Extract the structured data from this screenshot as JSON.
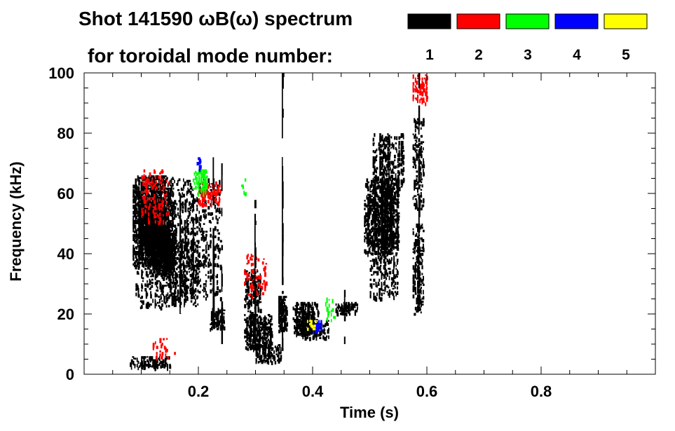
{
  "title_line1": "Shot 141590 ωB(ω) spectrum",
  "title_line2": "for toroidal mode number:",
  "chart_data": {
    "type": "heatmap",
    "title": "Shot 141590 ωB(ω) spectrum for toroidal mode number",
    "xlabel": "Time (s)",
    "ylabel": "Frequency (kHz)",
    "xlim": [
      0.0,
      1.0
    ],
    "ylim": [
      0,
      100
    ],
    "x_ticks": [
      0.2,
      0.4,
      0.6,
      0.8
    ],
    "x_tick_labels": [
      "0.2",
      "0.4",
      "0.6",
      "0.8"
    ],
    "y_ticks": [
      0,
      20,
      40,
      60,
      80,
      100
    ],
    "y_tick_labels": [
      "0",
      "20",
      "40",
      "60",
      "80",
      "100"
    ],
    "legend": [
      {
        "label": "1",
        "color": "#000000"
      },
      {
        "label": "2",
        "color": "#ff0000"
      },
      {
        "label": "3",
        "color": "#00ff00"
      },
      {
        "label": "4",
        "color": "#0000ff"
      },
      {
        "label": "5",
        "color": "#ffff00"
      }
    ],
    "mode_colors": {
      "1": "#000000",
      "2": "#ff0000",
      "3": "#00ff00",
      "4": "#0000ff",
      "5": "#ffff00"
    },
    "regions": [
      {
        "mode": "1",
        "t": [
          0.085,
          0.155
        ],
        "f": [
          36,
          66
        ],
        "density": 0.55
      },
      {
        "mode": "1",
        "t": [
          0.095,
          0.14
        ],
        "f": [
          40,
          58
        ],
        "density": 0.75
      },
      {
        "mode": "1",
        "t": [
          0.11,
          0.16
        ],
        "f": [
          33,
          48
        ],
        "density": 0.6
      },
      {
        "mode": "1",
        "t": [
          0.09,
          0.2
        ],
        "f": [
          22,
          45
        ],
        "density": 0.18
      },
      {
        "mode": "1",
        "t": [
          0.12,
          0.24
        ],
        "f": [
          25,
          65
        ],
        "density": 0.15
      },
      {
        "mode": "1",
        "t": [
          0.22,
          0.245
        ],
        "f": [
          15,
          22
        ],
        "density": 0.5
      },
      {
        "mode": "1",
        "t": [
          0.08,
          0.15
        ],
        "f": [
          2,
          6
        ],
        "density": 0.35
      },
      {
        "mode": "1",
        "t": [
          0.28,
          0.33
        ],
        "f": [
          8,
          20
        ],
        "density": 0.55
      },
      {
        "mode": "1",
        "t": [
          0.3,
          0.345
        ],
        "f": [
          4,
          10
        ],
        "density": 0.45
      },
      {
        "mode": "1",
        "t": [
          0.28,
          0.31
        ],
        "f": [
          20,
          35
        ],
        "density": 0.25
      },
      {
        "mode": "1",
        "t": [
          0.34,
          0.355
        ],
        "f": [
          14,
          26
        ],
        "density": 0.7
      },
      {
        "mode": "1",
        "t": [
          0.365,
          0.41
        ],
        "f": [
          13,
          24
        ],
        "density": 0.55
      },
      {
        "mode": "1",
        "t": [
          0.38,
          0.43
        ],
        "f": [
          12,
          18
        ],
        "density": 0.35
      },
      {
        "mode": "1",
        "t": [
          0.49,
          0.55
        ],
        "f": [
          40,
          65
        ],
        "density": 0.55
      },
      {
        "mode": "1",
        "t": [
          0.505,
          0.56
        ],
        "f": [
          60,
          80
        ],
        "density": 0.3
      },
      {
        "mode": "1",
        "t": [
          0.5,
          0.55
        ],
        "f": [
          25,
          45
        ],
        "density": 0.2
      },
      {
        "mode": "1",
        "t": [
          0.575,
          0.595
        ],
        "f": [
          20,
          50
        ],
        "density": 0.35
      },
      {
        "mode": "1",
        "t": [
          0.575,
          0.595
        ],
        "f": [
          55,
          85
        ],
        "density": 0.2
      },
      {
        "mode": "1",
        "t": [
          0.44,
          0.48
        ],
        "f": [
          20,
          24
        ],
        "density": 0.3
      },
      {
        "mode": "2",
        "t": [
          0.1,
          0.15
        ],
        "f": [
          50,
          68
        ],
        "density": 0.12
      },
      {
        "mode": "2",
        "t": [
          0.2,
          0.24
        ],
        "f": [
          56,
          64
        ],
        "density": 0.35
      },
      {
        "mode": "2",
        "t": [
          0.28,
          0.32
        ],
        "f": [
          25,
          40
        ],
        "density": 0.1
      },
      {
        "mode": "2",
        "t": [
          0.575,
          0.6
        ],
        "f": [
          90,
          100
        ],
        "density": 0.3
      },
      {
        "mode": "2",
        "t": [
          0.12,
          0.16
        ],
        "f": [
          5,
          12
        ],
        "density": 0.08
      },
      {
        "mode": "3",
        "t": [
          0.19,
          0.215
        ],
        "f": [
          60,
          68
        ],
        "density": 0.35
      },
      {
        "mode": "3",
        "t": [
          0.275,
          0.285
        ],
        "f": [
          60,
          65
        ],
        "density": 0.2
      },
      {
        "mode": "3",
        "t": [
          0.42,
          0.44
        ],
        "f": [
          18,
          26
        ],
        "density": 0.12
      },
      {
        "mode": "4",
        "t": [
          0.4,
          0.415
        ],
        "f": [
          14,
          18
        ],
        "density": 0.4
      },
      {
        "mode": "4",
        "t": [
          0.195,
          0.205
        ],
        "f": [
          68,
          72
        ],
        "density": 0.35
      },
      {
        "mode": "5",
        "t": [
          0.39,
          0.405
        ],
        "f": [
          15,
          18
        ],
        "density": 0.2
      }
    ],
    "streaks": [
      {
        "mode": "1",
        "t": 0.346,
        "f": [
          2,
          100
        ]
      },
      {
        "mode": "1",
        "t": 0.24,
        "f": [
          10,
          70
        ]
      },
      {
        "mode": "1",
        "t": 0.225,
        "f": [
          20,
          72
        ]
      },
      {
        "mode": "1",
        "t": 0.19,
        "f": [
          25,
          68
        ]
      },
      {
        "mode": "1",
        "t": 0.167,
        "f": [
          20,
          60
        ]
      },
      {
        "mode": "1",
        "t": 0.176,
        "f": [
          25,
          58
        ]
      },
      {
        "mode": "1",
        "t": 0.298,
        "f": [
          10,
          60
        ]
      },
      {
        "mode": "1",
        "t": 0.585,
        "f": [
          30,
          100
        ]
      },
      {
        "mode": "1",
        "t": 0.455,
        "f": [
          10,
          28
        ]
      }
    ]
  }
}
